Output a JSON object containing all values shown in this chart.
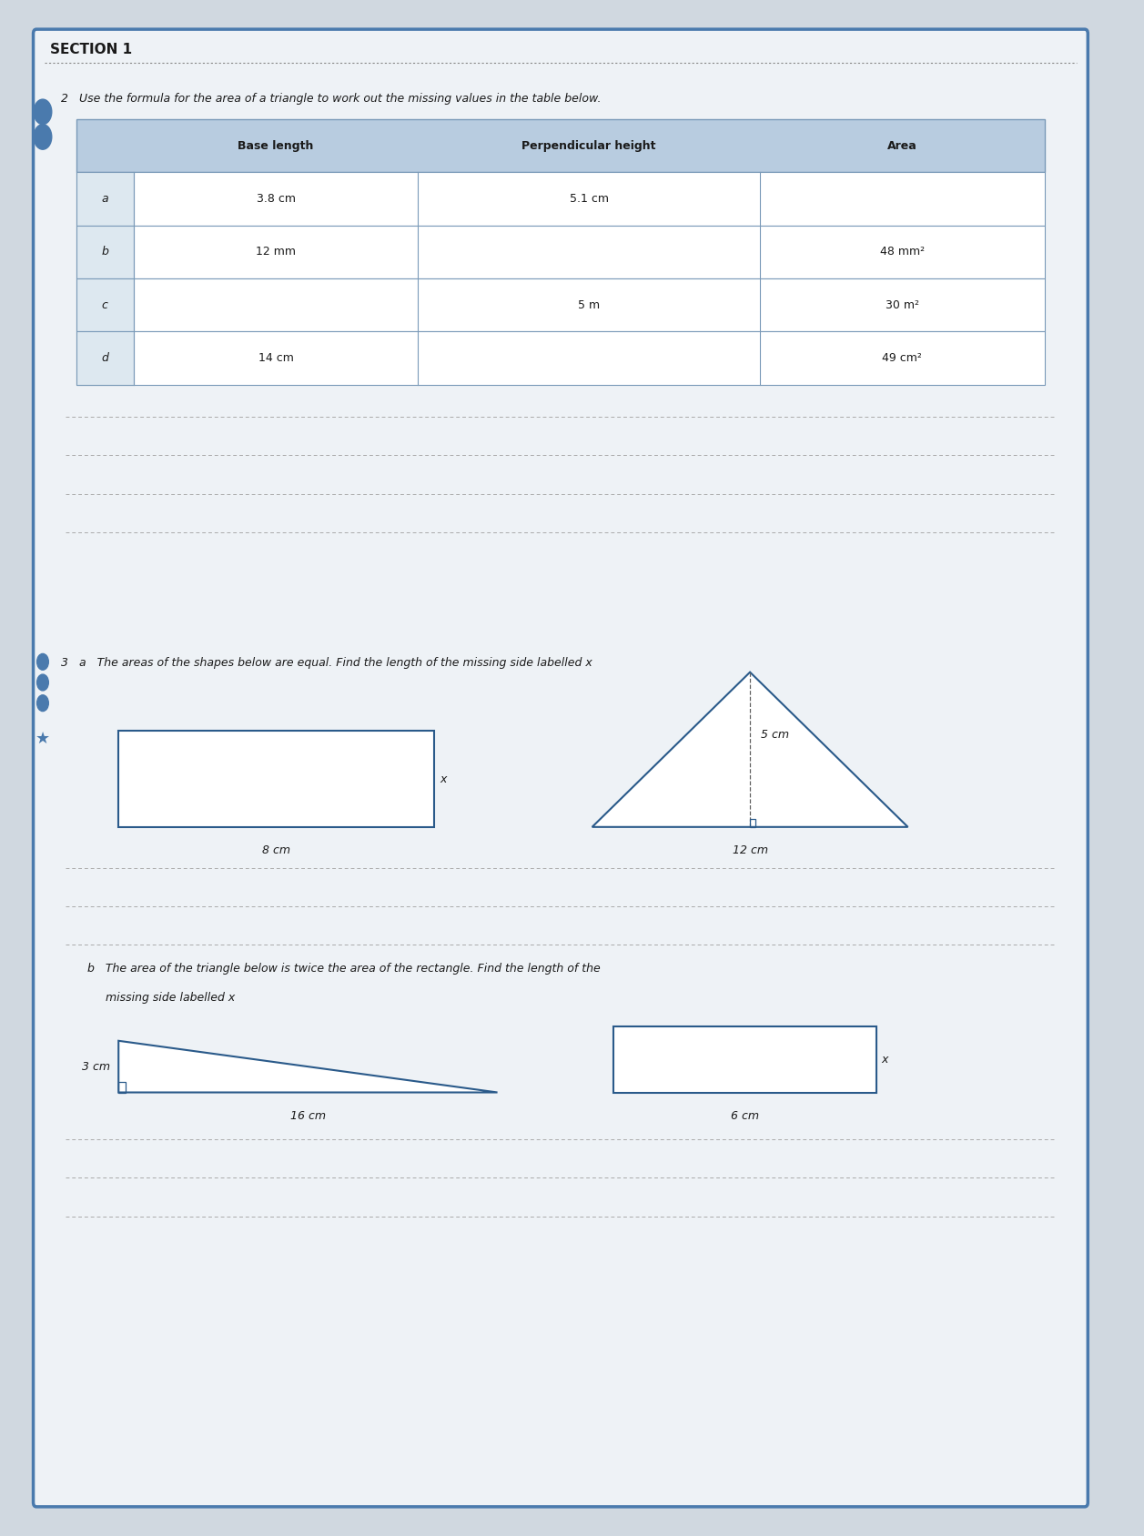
{
  "section_title": "SECTION 1",
  "q2_text": "2   Use the formula for the area of a triangle to work out the missing values in the table below.",
  "table_headers": [
    "",
    "Base length",
    "Perpendicular height",
    "Area"
  ],
  "table_rows": [
    [
      "a",
      "3.8 cm",
      "5.1 cm",
      ""
    ],
    [
      "b",
      "12 mm",
      "",
      "48 mm²"
    ],
    [
      "c",
      "",
      "5 m",
      "30 m²"
    ],
    [
      "d",
      "14 cm",
      "",
      "49 cm²"
    ]
  ],
  "q3a_text": "3   a   The areas of the shapes below are equal. Find the length of the missing side labelled x",
  "q3b_line1": "b   The area of the triangle below is twice the area of the rectangle. Find the length of the",
  "q3b_line2": "     missing side labelled x",
  "answer_line_color": "#aaaaaa",
  "border_color": "#4a7aad",
  "header_bg": "#b8cce0",
  "row_label_bg": "#dde8f0",
  "table_line_color": "#7a9ab8",
  "shape_color": "#2a5a8a",
  "page_bg": "#d0d8e0",
  "card_bg": "#eef2f6"
}
